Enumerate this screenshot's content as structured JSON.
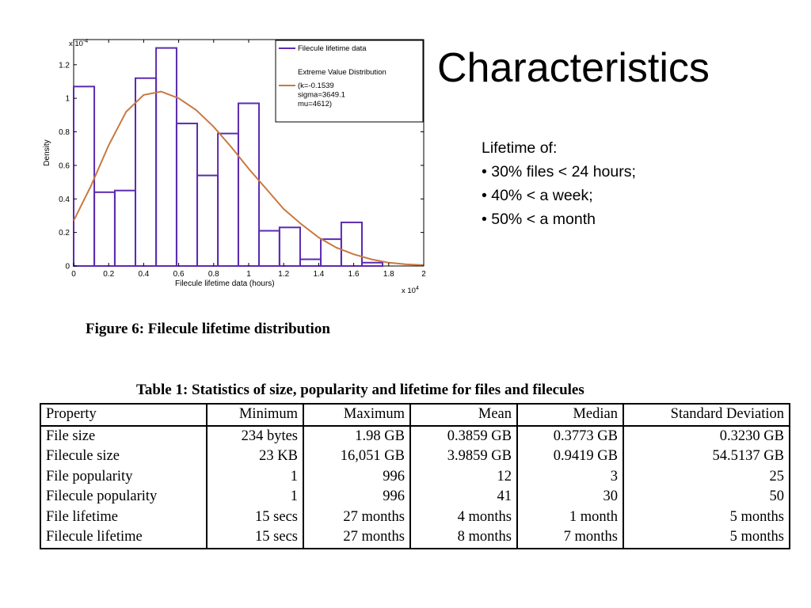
{
  "slide": {
    "title": "Characteristics",
    "bullets": [
      "Lifetime of:",
      "• 30% files < 24 hours;",
      "• 40% < a week;",
      "• 50% < a month"
    ]
  },
  "figure_caption": "Figure 6: Filecule lifetime distribution",
  "table": {
    "caption": "Table 1: Statistics of size, popularity and lifetime for files and filecules",
    "headers": [
      "Property",
      "Minimum",
      "Maximum",
      "Mean",
      "Median",
      "Standard Deviation"
    ],
    "rows": [
      [
        "File size",
        "234 bytes",
        "1.98 GB",
        "0.3859 GB",
        "0.3773 GB",
        "0.3230 GB"
      ],
      [
        "Filecule size",
        "23 KB",
        "16,051 GB",
        "3.9859 GB",
        "0.9419 GB",
        "54.5137 GB"
      ],
      [
        "File popularity",
        "1",
        "996",
        "12",
        "3",
        "25"
      ],
      [
        "Filecule popularity",
        "1",
        "996",
        "41",
        "30",
        "50"
      ],
      [
        "File lifetime",
        "15 secs",
        "27 months",
        "4 months",
        "1 month",
        "5 months"
      ],
      [
        "Filecule lifetime",
        "15 secs",
        "27 months",
        "8 months",
        "7 months",
        "5 months"
      ]
    ]
  },
  "chart_data": {
    "type": "bar",
    "title": "",
    "xlabel": "Filecule lifetime data (hours)",
    "ylabel": "Density",
    "x_multiplier": "x 10^4",
    "y_multiplier": "x 10^-4",
    "xlim": [
      0,
      2
    ],
    "ylim": [
      0,
      1.35
    ],
    "xticks": [
      0,
      0.2,
      0.4,
      0.6,
      0.8,
      1,
      1.2,
      1.4,
      1.6,
      1.8,
      2
    ],
    "xtick_labels": [
      "0",
      "0.2",
      "0.4",
      "0.6",
      "0.8",
      "1",
      "1.2",
      "1.4",
      "1.6",
      "1.8",
      "2"
    ],
    "yticks": [
      0,
      0.2,
      0.4,
      0.6,
      0.8,
      1,
      1.2
    ],
    "ytick_labels": [
      "0",
      "0.2",
      "0.4",
      "0.6",
      "0.8",
      "1",
      "1.2"
    ],
    "bin_edges": [
      0,
      0.118,
      0.235,
      0.353,
      0.471,
      0.588,
      0.706,
      0.824,
      0.941,
      1.059,
      1.176,
      1.294,
      1.412,
      1.529,
      1.647,
      1.765,
      1.882,
      2.0
    ],
    "series": [
      {
        "name": "Filecule lifetime data",
        "style": "histogram",
        "color": "#5b2bb0",
        "values": [
          1.07,
          0.44,
          0.45,
          1.12,
          1.3,
          0.85,
          0.54,
          0.79,
          0.97,
          0.21,
          0.23,
          0.04,
          0.16,
          0.26,
          0.02,
          0,
          0
        ]
      },
      {
        "name": "Extreme Value Distribution",
        "style": "line",
        "color": "#c87941",
        "x": [
          0,
          0.1,
          0.2,
          0.3,
          0.4,
          0.5,
          0.6,
          0.7,
          0.8,
          0.9,
          1.0,
          1.1,
          1.2,
          1.3,
          1.4,
          1.5,
          1.6,
          1.7,
          1.8,
          1.9,
          2.0
        ],
        "values": [
          0.27,
          0.48,
          0.72,
          0.92,
          1.02,
          1.04,
          1.0,
          0.93,
          0.83,
          0.71,
          0.58,
          0.46,
          0.34,
          0.25,
          0.17,
          0.11,
          0.07,
          0.04,
          0.02,
          0.01,
          0.005
        ]
      }
    ],
    "legend": {
      "position": "top-right",
      "entries": [
        "Filecule lifetime data",
        "Extreme Value Distribution"
      ],
      "params": [
        "(k=-0.1539",
        "sigma=3649.1",
        "mu=4612)"
      ]
    }
  }
}
